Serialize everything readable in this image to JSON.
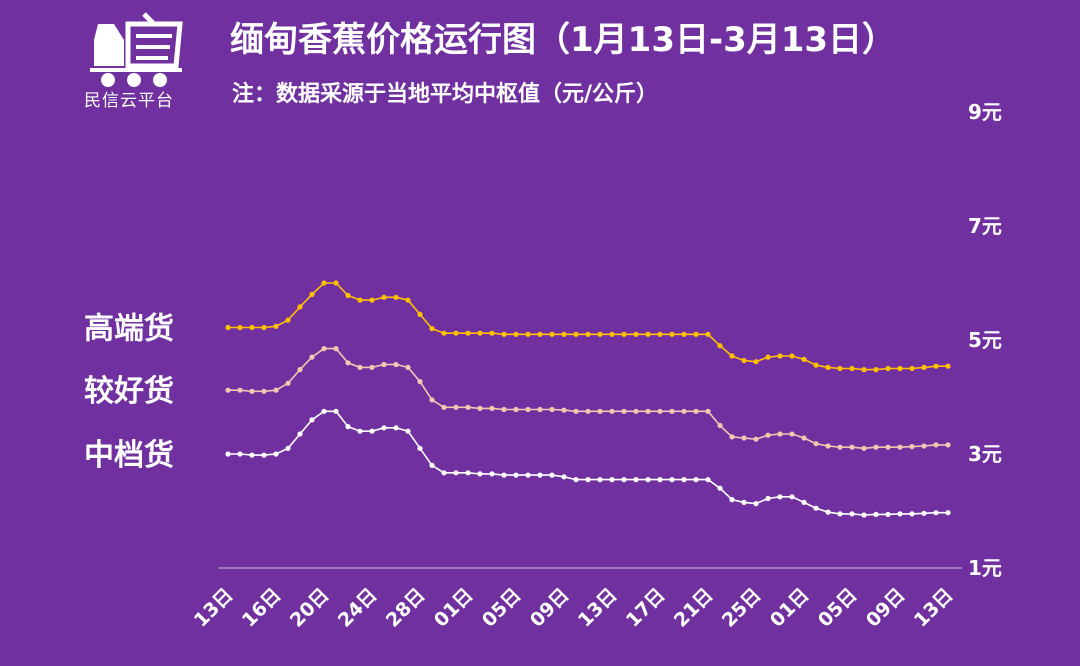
{
  "brand": {
    "name": "民信云平台",
    "icon": "truck-cart-icon"
  },
  "title": "缅甸香蕉价格运行图（1月13日-3月13日）",
  "subtitle": "注：数据采源于当地平均中枢值（元/公斤）",
  "colors": {
    "background": "#7030a0",
    "high": "#ffc000",
    "good": "#f4c7b0",
    "mid": "#ffffff",
    "axis": "#c9b6dd"
  },
  "chart_data": {
    "type": "line",
    "title": "缅甸香蕉价格运行图（1月13日-3月13日）",
    "ylabel": "元/公斤",
    "ylim": [
      1,
      9
    ],
    "y_ticks": [
      {
        "value": 9,
        "label": "9元"
      },
      {
        "value": 7,
        "label": "7元"
      },
      {
        "value": 5,
        "label": "5元"
      },
      {
        "value": 3,
        "label": "3元"
      },
      {
        "value": 1,
        "label": "1元"
      }
    ],
    "x_labels": [
      "13日",
      "16日",
      "20日",
      "24日",
      "28日",
      "01日",
      "05日",
      "09日",
      "13日",
      "17日",
      "21日",
      "25日",
      "01日",
      "05日",
      "09日",
      "13日"
    ],
    "series": [
      {
        "name": "高端货",
        "color": "#ffc000",
        "values": [
          5.22,
          5.22,
          5.22,
          5.22,
          5.24,
          5.35,
          5.58,
          5.8,
          6.0,
          6.0,
          5.78,
          5.7,
          5.7,
          5.75,
          5.75,
          5.7,
          5.45,
          5.2,
          5.12,
          5.12,
          5.12,
          5.12,
          5.12,
          5.1,
          5.1,
          5.1,
          5.1,
          5.1,
          5.1,
          5.1,
          5.1,
          5.1,
          5.1,
          5.1,
          5.1,
          5.1,
          5.1,
          5.1,
          5.1,
          5.1,
          5.1,
          4.9,
          4.72,
          4.64,
          4.62,
          4.7,
          4.72,
          4.72,
          4.66,
          4.56,
          4.52,
          4.5,
          4.5,
          4.48,
          4.48,
          4.5,
          4.5,
          4.5,
          4.52,
          4.54,
          4.54
        ]
      },
      {
        "name": "较好货",
        "color": "#f4c7b0",
        "values": [
          4.12,
          4.12,
          4.1,
          4.1,
          4.12,
          4.24,
          4.48,
          4.7,
          4.85,
          4.85,
          4.6,
          4.52,
          4.52,
          4.57,
          4.57,
          4.52,
          4.27,
          3.95,
          3.82,
          3.82,
          3.82,
          3.8,
          3.8,
          3.78,
          3.78,
          3.78,
          3.78,
          3.78,
          3.77,
          3.75,
          3.75,
          3.75,
          3.75,
          3.75,
          3.75,
          3.75,
          3.75,
          3.75,
          3.75,
          3.75,
          3.75,
          3.5,
          3.3,
          3.28,
          3.26,
          3.33,
          3.35,
          3.35,
          3.28,
          3.18,
          3.14,
          3.12,
          3.12,
          3.1,
          3.12,
          3.12,
          3.12,
          3.13,
          3.14,
          3.16,
          3.16
        ]
      },
      {
        "name": "中档货",
        "color": "#ffffff",
        "values": [
          3.0,
          3.0,
          2.98,
          2.98,
          3.0,
          3.1,
          3.35,
          3.6,
          3.75,
          3.75,
          3.48,
          3.4,
          3.4,
          3.46,
          3.46,
          3.4,
          3.1,
          2.8,
          2.67,
          2.67,
          2.67,
          2.65,
          2.65,
          2.63,
          2.63,
          2.63,
          2.63,
          2.63,
          2.6,
          2.55,
          2.55,
          2.55,
          2.55,
          2.55,
          2.55,
          2.55,
          2.55,
          2.55,
          2.55,
          2.55,
          2.55,
          2.4,
          2.2,
          2.15,
          2.13,
          2.22,
          2.25,
          2.25,
          2.15,
          2.05,
          1.98,
          1.95,
          1.95,
          1.93,
          1.94,
          1.94,
          1.95,
          1.95,
          1.96,
          1.97,
          1.97
        ]
      }
    ]
  }
}
